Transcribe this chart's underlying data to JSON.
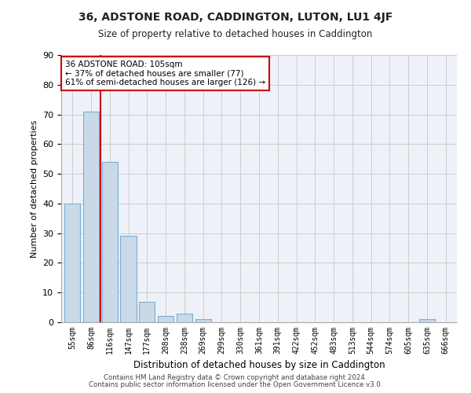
{
  "title": "36, ADSTONE ROAD, CADDINGTON, LUTON, LU1 4JF",
  "subtitle": "Size of property relative to detached houses in Caddington",
  "xlabel": "Distribution of detached houses by size in Caddington",
  "ylabel": "Number of detached properties",
  "bin_labels": [
    "55sqm",
    "86sqm",
    "116sqm",
    "147sqm",
    "177sqm",
    "208sqm",
    "238sqm",
    "269sqm",
    "299sqm",
    "330sqm",
    "361sqm",
    "391sqm",
    "422sqm",
    "452sqm",
    "483sqm",
    "513sqm",
    "544sqm",
    "574sqm",
    "605sqm",
    "635sqm",
    "666sqm"
  ],
  "bar_values": [
    40,
    71,
    54,
    29,
    7,
    2,
    3,
    1,
    0,
    0,
    0,
    0,
    0,
    0,
    0,
    0,
    0,
    0,
    0,
    1,
    0
  ],
  "bar_color": "#c9d9e8",
  "bar_edgecolor": "#7bafd4",
  "grid_color": "#cccccc",
  "background_color": "#eef2f8",
  "vline_color": "#cc0000",
  "annotation_title": "36 ADSTONE ROAD: 105sqm",
  "annotation_line1": "← 37% of detached houses are smaller (77)",
  "annotation_line2": "61% of semi-detached houses are larger (126) →",
  "annotation_box_facecolor": "#ffffff",
  "annotation_box_edgecolor": "#cc0000",
  "ylim": [
    0,
    90
  ],
  "yticks": [
    0,
    10,
    20,
    30,
    40,
    50,
    60,
    70,
    80,
    90
  ],
  "footer1": "Contains HM Land Registry data © Crown copyright and database right 2024.",
  "footer2": "Contains public sector information licensed under the Open Government Licence v3.0."
}
